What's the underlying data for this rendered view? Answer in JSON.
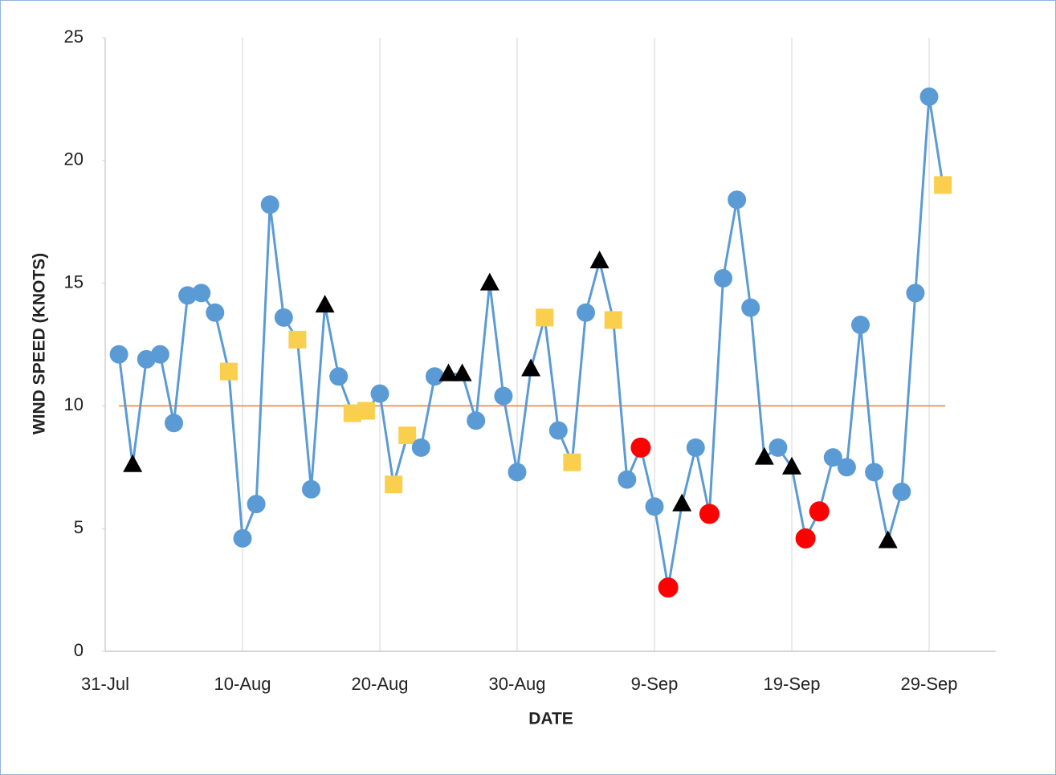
{
  "chart_data": {
    "type": "line",
    "x_label": "DATE",
    "y_label": "WIND SPEED (KNOTS)",
    "categories": [
      "31-Jul",
      null,
      null,
      null,
      null,
      null,
      null,
      null,
      null,
      null,
      "10-Aug",
      null,
      null,
      null,
      null,
      null,
      null,
      null,
      null,
      null,
      "20-Aug",
      null,
      null,
      null,
      null,
      null,
      null,
      null,
      null,
      null,
      "30-Aug",
      null,
      null,
      null,
      null,
      null,
      null,
      null,
      null,
      null,
      "9-Sep",
      null,
      null,
      null,
      null,
      null,
      null,
      null,
      null,
      null,
      "19-Sep",
      null,
      null,
      null,
      null,
      null,
      null,
      null,
      null,
      null,
      "29-Sep",
      null
    ],
    "series": [
      {
        "color": "#5b9bd5",
        "values": [
          null,
          12.1,
          7.6,
          11.9,
          12.1,
          9.3,
          14.5,
          14.6,
          13.8,
          11.4,
          4.6,
          6.0,
          18.2,
          13.6,
          12.7,
          6.6,
          14.1,
          11.2,
          9.7,
          9.8,
          10.5,
          6.8,
          8.8,
          8.3,
          11.2,
          11.3,
          11.3,
          9.4,
          15.0,
          10.4,
          7.3,
          11.5,
          13.6,
          9.0,
          7.7,
          13.8,
          15.9,
          13.5,
          7.0,
          8.3,
          5.9,
          2.6,
          6.0,
          8.3,
          5.6,
          15.2,
          18.4,
          14.0,
          7.9,
          8.3,
          7.5,
          4.6,
          5.7,
          7.9,
          7.5,
          13.3,
          7.3,
          4.5,
          6.5,
          14.6,
          22.6,
          19.0
        ],
        "marker_shapes": [
          null,
          "circle",
          "triangle",
          "circle",
          "circle",
          "circle",
          "circle",
          "circle",
          "circle",
          "square",
          "circle",
          "circle",
          "circle",
          "circle",
          "square",
          "circle",
          "triangle",
          "circle",
          "square",
          "square",
          "circle",
          "square",
          "square",
          "circle",
          "circle",
          "triangle",
          "triangle",
          "circle",
          "triangle",
          "circle",
          "circle",
          "triangle",
          "square",
          "circle",
          "square",
          "circle",
          "triangle",
          "square",
          "circle",
          "circle",
          "circle",
          "circle",
          "triangle",
          "circle",
          "circle",
          "circle",
          "circle",
          "circle",
          "triangle",
          "circle",
          "triangle",
          "circle",
          "circle",
          "circle",
          "circle",
          "circle",
          "circle",
          "triangle",
          "circle",
          "circle",
          "circle",
          "square"
        ],
        "marker_colors": [
          null,
          "#5b9bd5",
          "#000000",
          "#5b9bd5",
          "#5b9bd5",
          "#5b9bd5",
          "#5b9bd5",
          "#5b9bd5",
          "#5b9bd5",
          "#f9cf4d",
          "#5b9bd5",
          "#5b9bd5",
          "#5b9bd5",
          "#5b9bd5",
          "#f9cf4d",
          "#5b9bd5",
          "#000000",
          "#5b9bd5",
          "#f9cf4d",
          "#f9cf4d",
          "#5b9bd5",
          "#f9cf4d",
          "#f9cf4d",
          "#5b9bd5",
          "#5b9bd5",
          "#000000",
          "#000000",
          "#5b9bd5",
          "#000000",
          "#5b9bd5",
          "#5b9bd5",
          "#000000",
          "#f9cf4d",
          "#5b9bd5",
          "#f9cf4d",
          "#5b9bd5",
          "#000000",
          "#f9cf4d",
          "#5b9bd5",
          "#ff0000",
          "#5b9bd5",
          "#ff0000",
          "#000000",
          "#5b9bd5",
          "#ff0000",
          "#5b9bd5",
          "#5b9bd5",
          "#5b9bd5",
          "#000000",
          "#5b9bd5",
          "#000000",
          "#ff0000",
          "#ff0000",
          "#5b9bd5",
          "#5b9bd5",
          "#5b9bd5",
          "#5b9bd5",
          "#000000",
          "#5b9bd5",
          "#5b9bd5",
          "#5b9bd5",
          "#f9cf4d"
        ]
      }
    ],
    "reference_line": {
      "value": 10,
      "color": "#ed7d31"
    },
    "ylim": [
      0,
      25
    ],
    "yticks": [
      0,
      5,
      10,
      15,
      20,
      25
    ],
    "grid": true
  }
}
